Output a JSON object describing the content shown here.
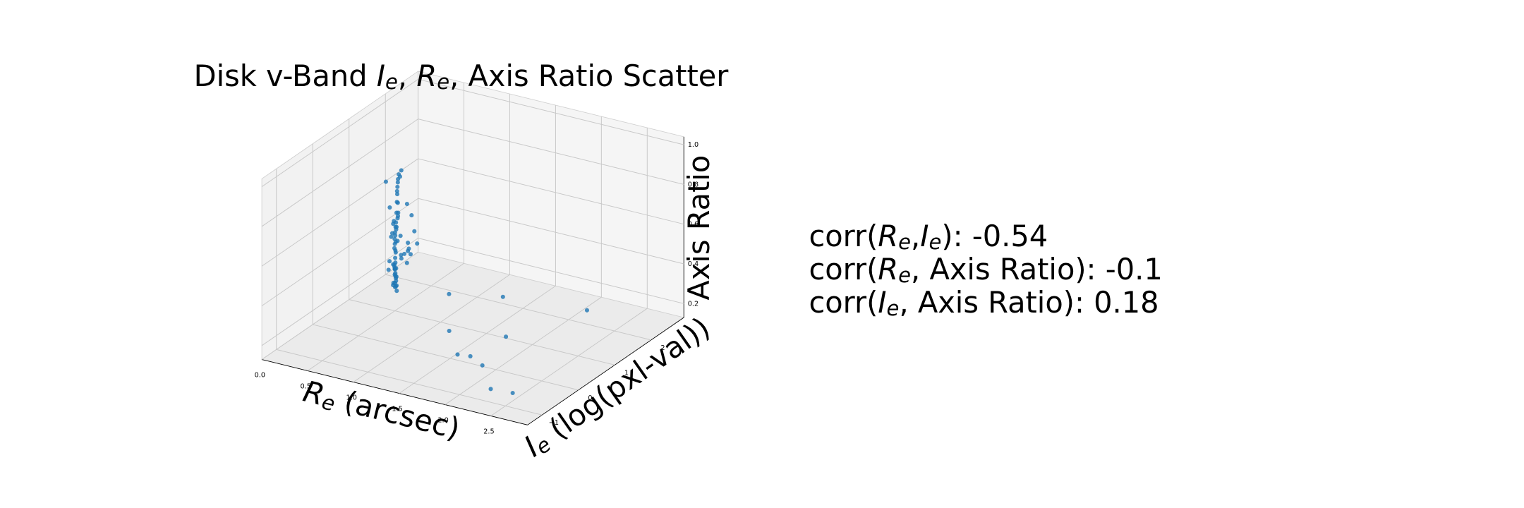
{
  "chart_data": {
    "type": "scatter",
    "title": "Disk v-Band Ie, Re, Axis Ratio Scatter",
    "xlabel": "Re (arcsec)",
    "ylabel": "Ie (log(pxl-val))",
    "zlabel": "Axis Ratio",
    "annotations": [
      "corr(Re,Ie): -0.54",
      "corr(Re, Axis Ratio): -0.1",
      "corr(Ie, Axis Ratio): 0.18"
    ],
    "color": "#1f77b4",
    "xlim": [
      0,
      2.9
    ],
    "ylim": [
      -1.4,
      2.9
    ],
    "zlim": [
      0.13,
      1.04
    ],
    "xticks": [
      {
        "value": 0,
        "label": "0.0"
      },
      0.5,
      {
        "value": 1,
        "label": "1.0"
      },
      1.5,
      {
        "value": 2,
        "label": "2.0"
      },
      2.5
    ],
    "yticks": [
      {
        "value": -1,
        "label": "−1"
      },
      0,
      1,
      2
    ],
    "zticks": [
      0.2,
      0.4,
      0.6,
      0.8,
      {
        "value": 1,
        "label": "1.0"
      }
    ],
    "x": [
      0.62,
      0.71,
      0.55,
      0.8,
      0.68,
      0.74,
      0.59,
      0.66,
      0.77,
      0.63,
      0.7,
      0.58,
      0.82,
      0.65,
      0.73,
      0.61,
      0.69,
      0.76,
      0.57,
      0.72,
      0.64,
      0.79,
      0.67,
      0.6,
      0.75,
      0.71,
      0.56,
      0.84,
      0.68,
      0.62,
      0.74,
      0.66,
      0.78,
      0.59,
      0.7,
      0.63,
      0.81,
      0.67,
      0.72,
      0.58,
      0.65,
      0.77,
      0.61,
      0.69,
      0.73,
      0.55,
      0.86,
      0.64,
      0.71,
      0.6,
      0.76,
      0.68,
      0.62,
      0.79,
      0.66,
      0.74,
      0.57,
      0.7,
      0.83,
      0.63,
      0.9,
      0.95,
      0.52,
      1.05,
      0.88,
      0.98,
      0.85,
      1.1,
      0.93,
      0.87,
      1.45,
      1.8,
      2.05,
      2.3,
      1.6,
      1.95,
      2.5,
      1.25,
      1.7,
      2.2
    ],
    "y": [
      0.55,
      0.4,
      0.7,
      0.3,
      0.62,
      0.48,
      0.8,
      0.35,
      0.58,
      0.66,
      0.45,
      0.75,
      0.28,
      0.52,
      0.6,
      0.72,
      0.38,
      0.5,
      0.85,
      0.42,
      0.68,
      0.33,
      0.56,
      0.78,
      0.46,
      0.64,
      0.9,
      0.25,
      0.54,
      0.7,
      0.44,
      0.61,
      0.36,
      0.82,
      0.5,
      0.66,
      0.3,
      0.57,
      0.48,
      0.76,
      0.63,
      0.4,
      0.74,
      0.53,
      0.45,
      0.88,
      0.27,
      0.6,
      0.49,
      0.79,
      0.39,
      0.56,
      0.71,
      0.34,
      0.62,
      0.47,
      0.83,
      0.52,
      0.31,
      0.67,
      0.35,
      0.2,
      0.95,
      0.15,
      0.4,
      0.25,
      0.45,
      0.1,
      0.3,
      0.5,
      0.1,
      -0.2,
      -0.5,
      -0.9,
      1.2,
      0.4,
      -0.8,
      0.6,
      -0.3,
      2.0
    ],
    "z": [
      0.45,
      0.62,
      0.38,
      0.8,
      0.55,
      0.7,
      0.33,
      0.88,
      0.5,
      0.42,
      0.66,
      0.3,
      0.92,
      0.58,
      0.47,
      0.36,
      0.75,
      0.6,
      0.28,
      0.68,
      0.4,
      0.85,
      0.52,
      0.32,
      0.72,
      0.48,
      0.25,
      0.95,
      0.57,
      0.39,
      0.65,
      0.44,
      0.83,
      0.29,
      0.61,
      0.41,
      0.9,
      0.54,
      0.63,
      0.31,
      0.46,
      0.78,
      0.35,
      0.59,
      0.67,
      0.27,
      0.97,
      0.43,
      0.64,
      0.34,
      0.73,
      0.51,
      0.37,
      0.87,
      0.49,
      0.69,
      0.3,
      0.56,
      0.93,
      0.4,
      0.6,
      0.82,
      0.35,
      0.7,
      0.55,
      0.76,
      0.48,
      0.65,
      0.58,
      0.52,
      0.25,
      0.2,
      0.22,
      0.18,
      0.3,
      0.24,
      0.17,
      0.35,
      0.21,
      0.2
    ]
  }
}
